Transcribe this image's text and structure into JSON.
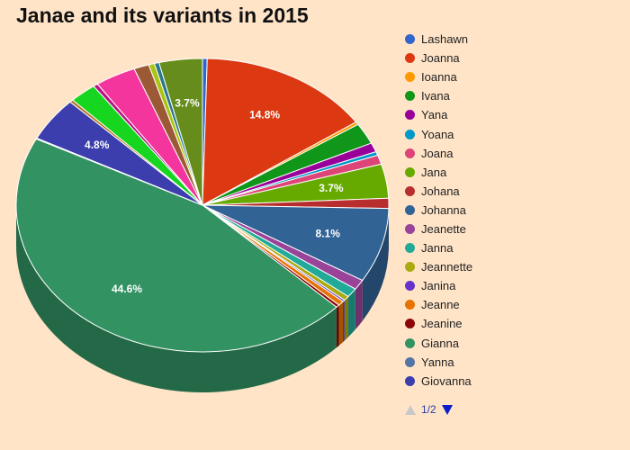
{
  "chart_data": {
    "type": "pie",
    "title": "Janae and its variants in 2015",
    "legend_position": "right",
    "pager": {
      "text": "1/2"
    },
    "slices": [
      {
        "name": "Lashawn",
        "value": 0.4,
        "color": "#3366cc",
        "label": ""
      },
      {
        "name": "Joanna",
        "value": 14.8,
        "color": "#dc3912",
        "label": "14.8%"
      },
      {
        "name": "Ioanna",
        "value": 0.3,
        "color": "#ff9900",
        "label": ""
      },
      {
        "name": "Ivana",
        "value": 2.3,
        "color": "#109618",
        "label": ""
      },
      {
        "name": "Yana",
        "value": 1.0,
        "color": "#990099",
        "label": ""
      },
      {
        "name": "Yoana",
        "value": 0.4,
        "color": "#0099c6",
        "label": ""
      },
      {
        "name": "Joana",
        "value": 1.0,
        "color": "#dd4477",
        "label": ""
      },
      {
        "name": "Jana",
        "value": 3.7,
        "color": "#66aa00",
        "label": "3.7%"
      },
      {
        "name": "Johana",
        "value": 1.1,
        "color": "#b82e2e",
        "label": ""
      },
      {
        "name": "Johanna",
        "value": 8.1,
        "color": "#316395",
        "label": "8.1%"
      },
      {
        "name": "Jeanette",
        "value": 1.1,
        "color": "#994499",
        "label": ""
      },
      {
        "name": "Janna",
        "value": 1.0,
        "color": "#22aa99",
        "label": ""
      },
      {
        "name": "Jeannette",
        "value": 0.5,
        "color": "#aaaa11",
        "label": ""
      },
      {
        "name": "Janina",
        "value": 0.2,
        "color": "#6633cc",
        "label": ""
      },
      {
        "name": "Jeanne",
        "value": 0.5,
        "color": "#e67300",
        "label": ""
      },
      {
        "name": "Jeanine",
        "value": 0.3,
        "color": "#8b0707",
        "label": ""
      },
      {
        "name": "Gianna",
        "value": 44.6,
        "color": "#329262",
        "label": "44.6%"
      },
      {
        "name": "Yanna",
        "value": 0.1,
        "color": "#5574a6",
        "label": ""
      },
      {
        "name": "Giovanna",
        "value": 4.8,
        "color": "#3b3eac",
        "label": "4.8%"
      },
      {
        "name": "",
        "value": 0.3,
        "color": "#b77322",
        "label": ""
      },
      {
        "name": "",
        "value": 2.3,
        "color": "#16d620",
        "label": ""
      },
      {
        "name": "",
        "value": 0.4,
        "color": "#b91383",
        "label": ""
      },
      {
        "name": "",
        "value": 3.5,
        "color": "#f4359e",
        "label": ""
      },
      {
        "name": "",
        "value": 1.3,
        "color": "#9c5935",
        "label": ""
      },
      {
        "name": "",
        "value": 0.5,
        "color": "#a9c413",
        "label": ""
      },
      {
        "name": "",
        "value": 0.4,
        "color": "#2a778d",
        "label": ""
      },
      {
        "name": "",
        "value": 3.7,
        "color": "#668d1c",
        "label": "3.7%"
      }
    ]
  }
}
